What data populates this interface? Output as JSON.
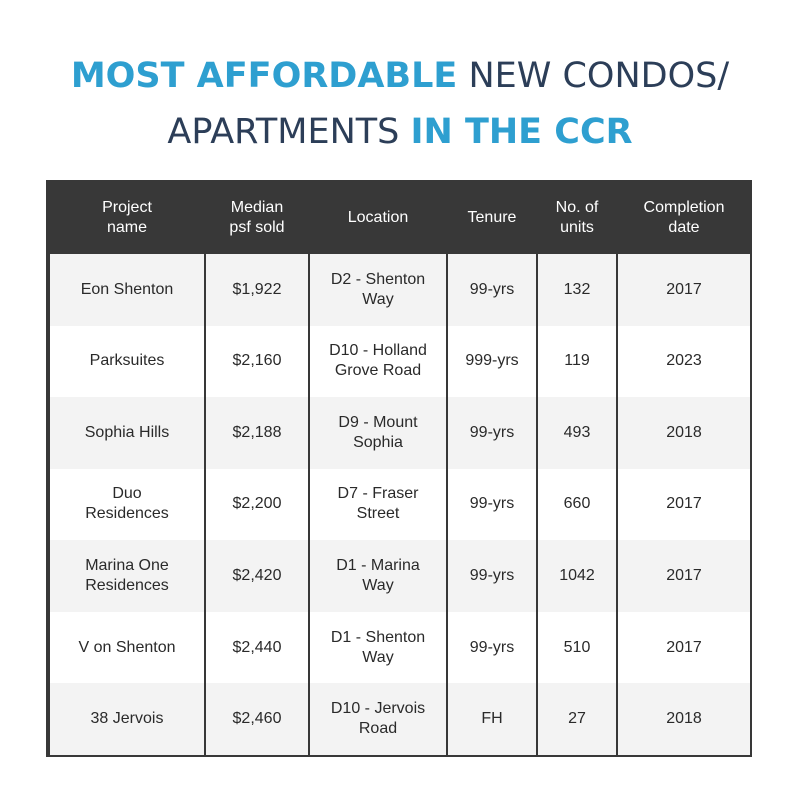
{
  "title": {
    "line1_highlight": "MOST AFFORDABLE",
    "line1_rest": " NEW CONDOS/",
    "line2_rest": "APARTMENTS ",
    "line2_highlight": "IN THE CCR"
  },
  "colors": {
    "accent": "#2e9fd0",
    "dark_blue": "#2c3e58",
    "header_bg": "#383838",
    "row_alt": "#f3f3f3"
  },
  "table": {
    "headers": [
      "Project name",
      "Median psf sold",
      "Location",
      "Tenure",
      "No. of units",
      "Completion date"
    ],
    "rows": [
      [
        "Eon Shenton",
        "$1,922",
        "D2 - Shenton Way",
        "99-yrs",
        "132",
        "2017"
      ],
      [
        "Parksuites",
        "$2,160",
        "D10 - Holland Grove Road",
        "999-yrs",
        "119",
        "2023"
      ],
      [
        "Sophia Hills",
        "$2,188",
        "D9 - Mount Sophia",
        "99-yrs",
        "493",
        "2018"
      ],
      [
        "Duo Residences",
        "$2,200",
        "D7 - Fraser Street",
        "99-yrs",
        "660",
        "2017"
      ],
      [
        "Marina One Residences",
        "$2,420",
        "D1 - Marina Way",
        "99-yrs",
        "1042",
        "2017"
      ],
      [
        "V on Shenton",
        "$2,440",
        "D1 - Shenton Way",
        "99-yrs",
        "510",
        "2017"
      ],
      [
        "38 Jervois",
        "$2,460",
        "D10 - Jervois Road",
        "FH",
        "27",
        "2018"
      ]
    ]
  }
}
